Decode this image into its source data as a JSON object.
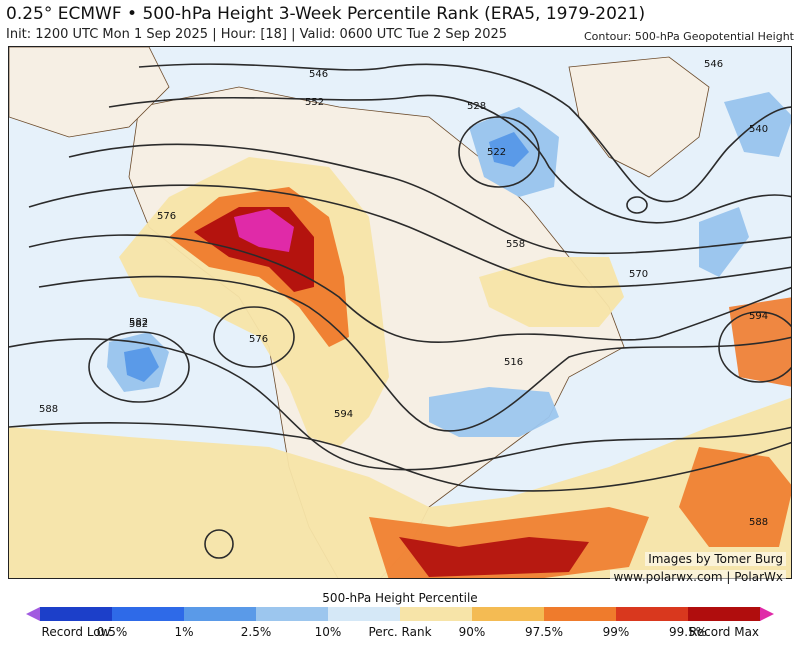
{
  "title": "0.25° ECMWF • 500-hPa Height 3-Week Percentile Rank (ERA5, 1979-2021)",
  "subtitle": "Init: 1200 UTC Mon 1 Sep 2025 | Hour: [18] | Valid: 0600 UTC Tue 2 Sep 2025",
  "contour_note": "Contour: 500-hPa Geopotential Height",
  "credit": {
    "line1": "Images by Tomer Burg",
    "line2": "www.polarwx.com | PolarWx"
  },
  "contour_labels": [
    "546",
    "552",
    "558",
    "570",
    "576",
    "582",
    "588",
    "594",
    "528",
    "522",
    "540",
    "546",
    "516",
    "576",
    "582",
    "588",
    "594"
  ],
  "colorbar": {
    "title": "500-hPa Height Percentile",
    "labels": [
      "Record Low",
      "0.5%",
      "1%",
      "2.5%",
      "10%",
      "Perc. Rank",
      "90%",
      "97.5%",
      "99%",
      "99.5%",
      "Record Max"
    ],
    "colors": [
      "#a15be0",
      "#1c3fc9",
      "#2e6ae8",
      "#5a9ae8",
      "#9cc6ee",
      "#d5e8f7",
      "#f7e4a8",
      "#f4bb53",
      "#ef7b2c",
      "#d9381e",
      "#b00d0d",
      "#e02aa8"
    ]
  }
}
